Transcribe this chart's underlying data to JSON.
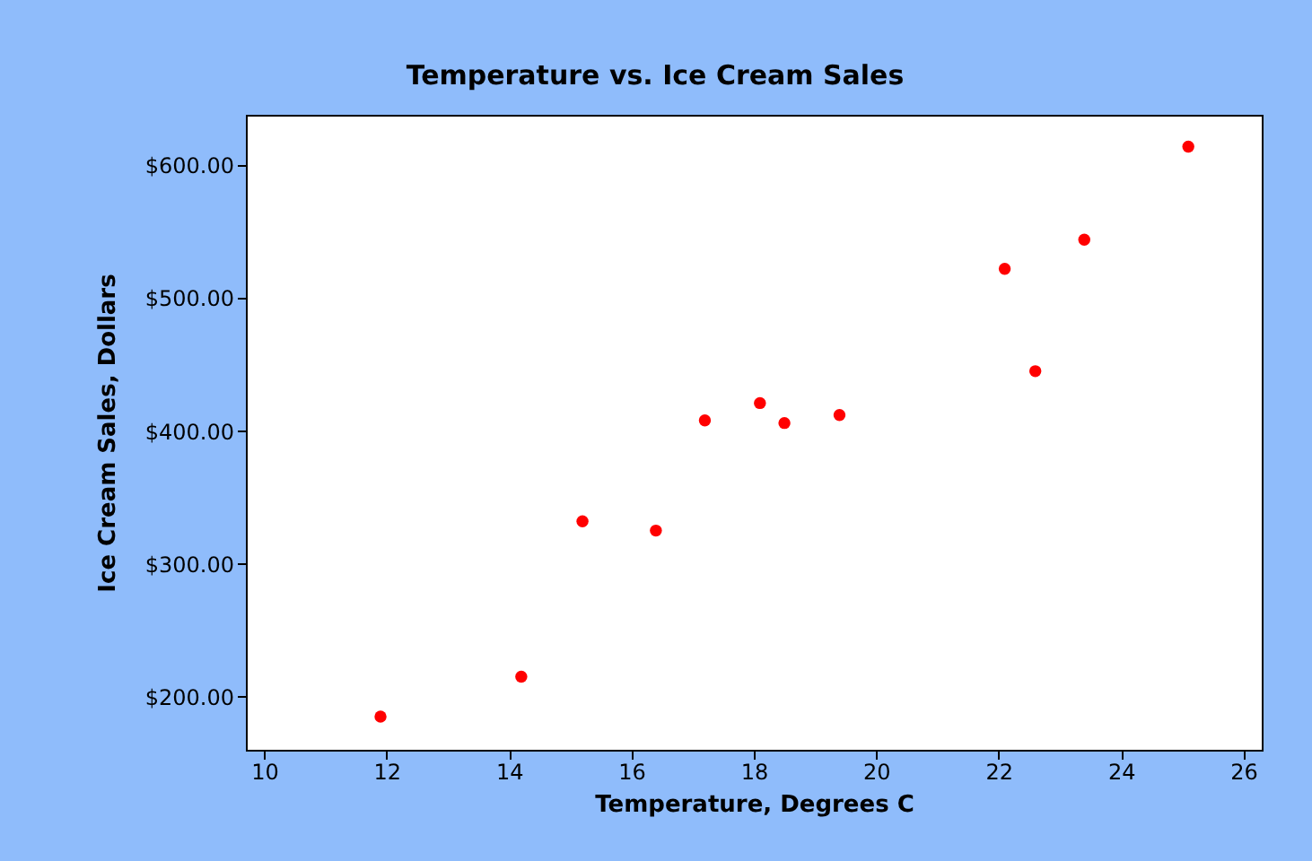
{
  "chart_data": {
    "type": "scatter",
    "title": "Temperature vs. Ice Cream Sales",
    "xlabel": "Temperature, Degrees C",
    "ylabel": "Ice Cream Sales, Dollars",
    "x": [
      11.9,
      14.2,
      15.2,
      16.4,
      17.2,
      18.1,
      18.5,
      19.4,
      22.1,
      22.6,
      23.4,
      25.1
    ],
    "series": [
      {
        "color": "#ff0000",
        "values": [
          185,
          215,
          332,
          325,
          408,
          421,
          406,
          412,
          522,
          445,
          544,
          614
        ]
      }
    ],
    "xlim": [
      9.7,
      26.3
    ],
    "xticks": [
      10,
      12,
      14,
      16,
      18,
      20,
      22,
      24,
      26
    ],
    "ylim": [
      160,
      638
    ],
    "yticks": [
      {
        "value": 200,
        "label": "$200.00"
      },
      {
        "value": 300,
        "label": "$300.00"
      },
      {
        "value": 400,
        "label": "$400.00"
      },
      {
        "value": 500,
        "label": "$500.00"
      },
      {
        "value": 600,
        "label": "$600.00"
      }
    ],
    "marker": "circle",
    "grid": false,
    "legend": false
  }
}
